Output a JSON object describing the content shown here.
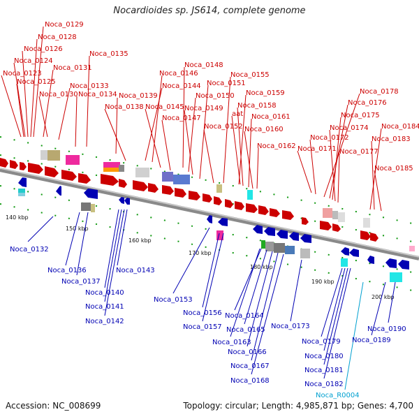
{
  "title": "Nocardioides sp. JS614, complete genome",
  "footer": {
    "accession": "Accession: NC_008699",
    "summary": "Topology: circular; Length: 4,985,871 bp; Genes: 4,700"
  },
  "colors": {
    "forward": "#cc0000",
    "reverse": "#0000b3",
    "rna": "#00a0d0",
    "backbone": "#9a9a9a"
  },
  "ticks": [
    {
      "label": "140 kbp"
    },
    {
      "label": "150 kbp"
    },
    {
      "label": "160 kbp"
    },
    {
      "label": "170 kbp"
    },
    {
      "label": "180 kbp"
    },
    {
      "label": "190 kbp"
    },
    {
      "label": "200 kbp"
    }
  ],
  "forward_labels": [
    "Noca_0129",
    "Noca_0128",
    "Noca_0126",
    "Noca_0124",
    "Noca_0123",
    "Noca_0125",
    "Noca_0131",
    "Noca_0130",
    "Noca_0133",
    "Noca_0134",
    "Noca_0135",
    "Noca_0139",
    "Noca_0138",
    "Noca_0144",
    "Noca_0146",
    "Noca_0145",
    "Noca_0147",
    "Noca_0148",
    "Noca_0150",
    "Noca_0149",
    "Noca_0151",
    "Noca_0155",
    "Noca_0152",
    "aat",
    "Noca_0159",
    "Noca_0158",
    "Noca_0161",
    "Noca_0160",
    "Noca_0162",
    "Noca_0178",
    "Noca_0176",
    "Noca_0175",
    "Noca_0174",
    "Noca_0172",
    "Noca_0171",
    "Noca_0177",
    "Noca_0184",
    "Noca_0183",
    "Noca_0185"
  ],
  "reverse_labels": [
    "Noca_0132",
    "Noca_0136",
    "Noca_0137",
    "Noca_0140",
    "Noca_0141",
    "Noca_0142",
    "Noca_0143",
    "Noca_0153",
    "Noca_0156",
    "Noca_0157",
    "Noca_0164",
    "Noca_0165",
    "Noca_0163",
    "Noca_0166",
    "Noca_0167",
    "Noca_0168",
    "Noca_0173",
    "Noca_0179",
    "Noca_0180",
    "Noca_0181",
    "Noca_0182",
    "Noca_0189",
    "Noca_0190"
  ],
  "rna_labels": [
    "Noca_R0004"
  ]
}
